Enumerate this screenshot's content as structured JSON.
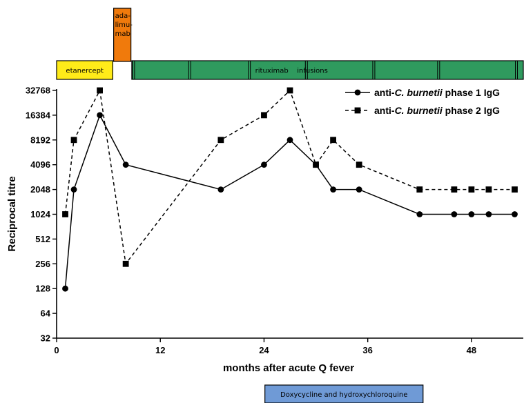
{
  "chart_data": {
    "type": "line",
    "xlabel": "months after acute Q fever",
    "ylabel": "Reciprocal titre",
    "xlim": [
      0,
      54
    ],
    "ylim": [
      32,
      32768
    ],
    "y_scale": "log2",
    "x_ticks": [
      0,
      12,
      24,
      36,
      48
    ],
    "x_tick_labels": [
      "0",
      "12",
      "24",
      "36",
      "48"
    ],
    "y_ticks": [
      32,
      64,
      128,
      256,
      512,
      1024,
      2048,
      4096,
      8192,
      16384,
      32768
    ],
    "y_tick_labels": [
      "32",
      "64",
      "128",
      "256",
      "512",
      "1024",
      "2048",
      "4096",
      "8192",
      "16384",
      "32768"
    ],
    "grid": false,
    "legend_position": "top-right",
    "series": [
      {
        "legend_prefix": "anti-",
        "legend_italic": "C. burnetii",
        "legend_suffix": " phase 1 IgG",
        "marker": "circle",
        "line_style": "solid",
        "color": "#000000",
        "x": [
          1,
          2,
          5,
          8,
          19,
          24,
          27,
          30,
          32,
          35,
          42,
          46,
          48,
          50,
          53
        ],
        "y": [
          128,
          2048,
          16384,
          4096,
          2048,
          4096,
          8192,
          4096,
          2048,
          2048,
          1024,
          1024,
          1024,
          1024,
          1024
        ]
      },
      {
        "legend_prefix": "anti-",
        "legend_italic": "C. burnetii",
        "legend_suffix": " phase 2 IgG",
        "marker": "square",
        "line_style": "dashed",
        "color": "#000000",
        "x": [
          1,
          2,
          5,
          8,
          19,
          24,
          27,
          30,
          32,
          35,
          42,
          46,
          48,
          50,
          53
        ],
        "y": [
          1024,
          8192,
          32768,
          256,
          8192,
          16384,
          32768,
          4096,
          8192,
          4096,
          2048,
          2048,
          2048,
          2048,
          2048
        ]
      }
    ],
    "treatments": [
      {
        "label": "etanercept",
        "start": 0,
        "end": 6.5,
        "color": "#ffeb19",
        "row": "lower"
      },
      {
        "label_lines": [
          "ada-",
          "limu-",
          "mab"
        ],
        "start": 6.6,
        "end": 8.6,
        "color": "#f07a0c",
        "row": "upper"
      },
      {
        "labels": [
          "rituximab",
          "infusions"
        ],
        "label_x": [
          24.9,
          29.6
        ],
        "start": 8.7,
        "end": 54,
        "color": "#2f9a5e",
        "row": "lower",
        "infusions": [
          8.9,
          15.4,
          22.3,
          28.9,
          36.7,
          44.2,
          53.2
        ]
      },
      {
        "label": "Doxycycline and hydroxychloroquine",
        "start": 24.1,
        "end": 42.4,
        "color": "#6f9ad6",
        "row": "bottom"
      }
    ]
  }
}
